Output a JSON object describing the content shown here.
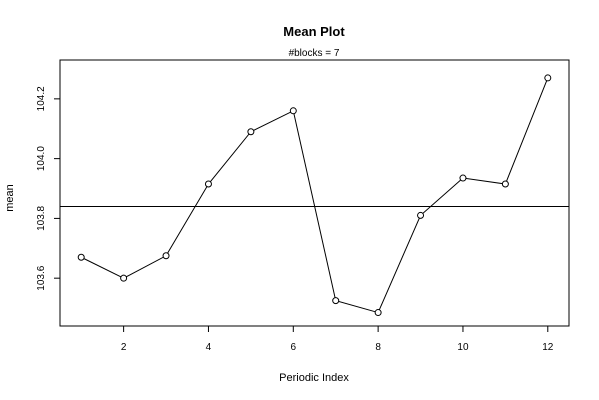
{
  "chart_data": {
    "type": "line",
    "title": "Mean Plot",
    "subtitle": "#blocks =  7",
    "xlabel": "Periodic Index",
    "ylabel": "mean",
    "x": [
      1,
      2,
      3,
      4,
      5,
      6,
      7,
      8,
      9,
      10,
      11,
      12
    ],
    "values": [
      103.67,
      103.6,
      103.675,
      103.915,
      104.09,
      104.16,
      103.525,
      103.485,
      103.81,
      103.935,
      103.915,
      104.27
    ],
    "reference_line": 103.84,
    "xlim": [
      0.5,
      12.5
    ],
    "ylim": [
      103.44,
      104.33
    ],
    "x_ticks": [
      2,
      4,
      6,
      8,
      10,
      12
    ],
    "x_tick_labels": [
      "2",
      "4",
      "6",
      "8",
      "10",
      "12"
    ],
    "y_ticks": [
      103.6,
      103.8,
      104.0,
      104.2
    ],
    "y_tick_labels": [
      "103.6",
      "103.8",
      "104.0",
      "104.2"
    ],
    "grid": false,
    "marker": "open-circle",
    "line_color": "#000000",
    "reference_line_color": "#000000"
  }
}
